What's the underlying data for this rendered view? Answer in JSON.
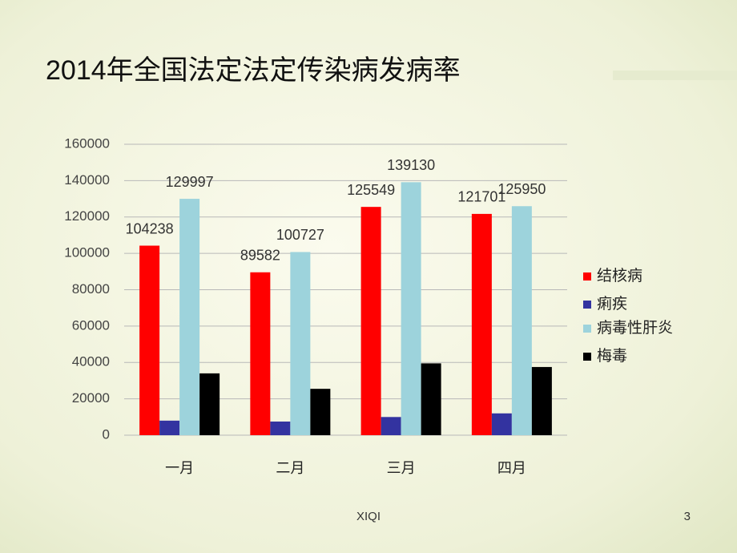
{
  "chart_data": {
    "type": "bar",
    "title": "2014年全国法定法定传染病发病率",
    "categories": [
      "一月",
      "二月",
      "三月",
      "四月"
    ],
    "series": [
      {
        "name": "结核病",
        "color": "#ff0000",
        "values": [
          104238,
          89582,
          125549,
          121701
        ],
        "show_value_labels": true
      },
      {
        "name": "痢疾",
        "color": "#3333a0",
        "values": [
          8000,
          7500,
          10000,
          12000
        ],
        "show_value_labels": false
      },
      {
        "name": "病毒性肝炎",
        "color": "#9dd3dc",
        "values": [
          129997,
          100727,
          139130,
          125950
        ],
        "show_value_labels": true
      },
      {
        "name": "梅毒",
        "color": "#000000",
        "values": [
          34000,
          25500,
          39500,
          37500
        ],
        "show_value_labels": false
      }
    ],
    "ylim": [
      0,
      160000
    ],
    "yticks": [
      0,
      20000,
      40000,
      60000,
      80000,
      100000,
      120000,
      140000,
      160000
    ],
    "grid": true,
    "legend": "right"
  },
  "footer": "XIQI",
  "page_number": "3"
}
